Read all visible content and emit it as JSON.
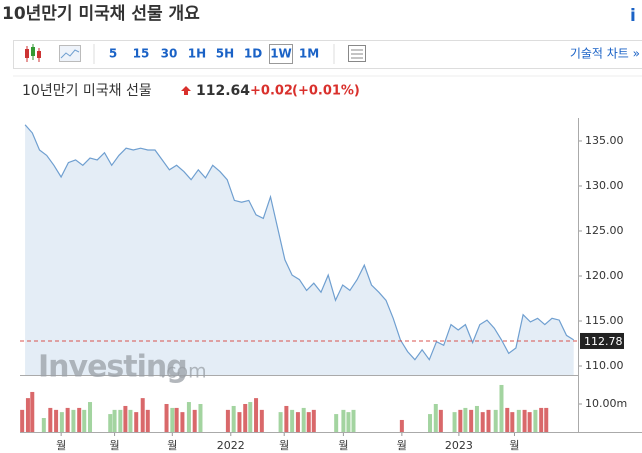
{
  "header": {
    "title": "10년만기 미국채 선물 개요",
    "info": "i"
  },
  "toolbar": {
    "intervals": [
      "5",
      "15",
      "30",
      "1H",
      "5H",
      "1D",
      "1W",
      "1M"
    ],
    "selected": 6,
    "link": "기술적 차트 »"
  },
  "quote": {
    "name": "10년만기 미국채 선물",
    "price": "112.64",
    "change": "+0.02",
    "change_pct": "(+0.01%)"
  },
  "watermark": [
    "Investing",
    ".com"
  ],
  "chart_data": {
    "type": "area",
    "color": "#6f9fd0",
    "fill": "#e4edf6",
    "values": [
      136.8,
      135.9,
      134.0,
      133.4,
      132.3,
      131.0,
      132.6,
      132.9,
      132.3,
      133.1,
      132.9,
      133.7,
      132.3,
      133.4,
      134.2,
      134.0,
      134.2,
      134.0,
      134.0,
      132.9,
      131.8,
      132.3,
      131.6,
      130.7,
      131.8,
      130.9,
      132.3,
      131.6,
      130.7,
      128.4,
      128.2,
      128.4,
      126.8,
      126.4,
      128.8,
      125.3,
      121.8,
      120.1,
      119.6,
      118.4,
      119.2,
      118.2,
      120.1,
      117.3,
      119.0,
      118.4,
      119.6,
      121.2,
      119.0,
      118.2,
      117.3,
      115.3,
      112.9,
      111.6,
      110.7,
      111.8,
      110.7,
      112.7,
      112.3,
      114.6,
      114.0,
      114.6,
      112.6,
      114.6,
      115.1,
      114.2,
      112.9,
      111.4,
      112.0,
      115.7,
      114.9,
      115.3,
      114.6,
      115.3,
      115.1,
      113.4,
      112.9
    ],
    "xlim": [
      -0.7,
      76.6
    ],
    "xticks": [
      {
        "value": 5.0,
        "label": "월"
      },
      {
        "value": 12.4,
        "label": "월"
      },
      {
        "value": 20.4,
        "label": "월"
      },
      {
        "value": 28.5,
        "label": "2022"
      },
      {
        "value": 35.9,
        "label": "월"
      },
      {
        "value": 44.1,
        "label": "월"
      },
      {
        "value": 52.2,
        "label": "월"
      },
      {
        "value": 60.1,
        "label": "2023"
      },
      {
        "value": 67.8,
        "label": "월"
      }
    ],
    "ylim": [
      109,
      137.33
    ],
    "yticks": [
      {
        "value": 135,
        "label": "135.00"
      },
      {
        "value": 130,
        "label": "130.00"
      },
      {
        "value": 125,
        "label": "125.00"
      },
      {
        "value": 120,
        "label": "120.00"
      },
      {
        "value": 115,
        "label": "115.00"
      },
      {
        "value": 110,
        "label": "110.00"
      }
    ],
    "last_price": 112.78,
    "last_color": "#d9534f",
    "volume": {
      "x": [
        -0.4,
        0.4,
        1.0,
        2.6,
        3.5,
        4.3,
        5.1,
        5.9,
        6.7,
        7.5,
        8.2,
        9.0,
        11.8,
        12.4,
        13.2,
        13.9,
        14.6,
        15.4,
        16.3,
        17.0,
        19.6,
        20.4,
        21.0,
        21.8,
        22.7,
        23.5,
        24.3,
        28.1,
        28.9,
        29.7,
        30.5,
        31.2,
        32.0,
        32.8,
        35.4,
        36.2,
        37.0,
        37.8,
        38.6,
        39.3,
        40.0,
        43.1,
        44.1,
        44.8,
        45.5,
        52.2,
        56.1,
        56.9,
        57.6,
        59.5,
        60.3,
        61.0,
        61.8,
        62.6,
        63.4,
        64.2,
        65.2,
        66.0,
        66.8,
        67.5,
        68.4,
        69.2,
        69.9,
        70.7,
        71.5,
        72.2
      ],
      "values": [
        7900000,
        12100000,
        14300000,
        5000000,
        8600000,
        7900000,
        7100000,
        8600000,
        7900000,
        8600000,
        7900000,
        10700000,
        6400000,
        7900000,
        7900000,
        9300000,
        7900000,
        7100000,
        12100000,
        7900000,
        10000000,
        8600000,
        8600000,
        7100000,
        10700000,
        7900000,
        10000000,
        7900000,
        9300000,
        7100000,
        10000000,
        10700000,
        12100000,
        7900000,
        7100000,
        9300000,
        7900000,
        7100000,
        8600000,
        7100000,
        7900000,
        6400000,
        7900000,
        7100000,
        7900000,
        4300000,
        6400000,
        10000000,
        7900000,
        7100000,
        7900000,
        8600000,
        7900000,
        9300000,
        7100000,
        7900000,
        7900000,
        16800000,
        8600000,
        7100000,
        7900000,
        7900000,
        7100000,
        7900000,
        8600000,
        8600000
      ],
      "colors": [
        "#d9686a",
        "#d9686a",
        "#d9686a",
        "#a3d4a0",
        "#d9686a",
        "#d9686a",
        "#a3d4a0",
        "#d9686a",
        "#a3d4a0",
        "#d9686a",
        "#a3d4a0",
        "#a3d4a0",
        "#a3d4a0",
        "#a3d4a0",
        "#a3d4a0",
        "#d9686a",
        "#a3d4a0",
        "#d9686a",
        "#d9686a",
        "#d9686a",
        "#d9686a",
        "#a3d4a0",
        "#d9686a",
        "#d9686a",
        "#a3d4a0",
        "#d9686a",
        "#a3d4a0",
        "#d9686a",
        "#a3d4a0",
        "#d9686a",
        "#d9686a",
        "#a3d4a0",
        "#d9686a",
        "#d9686a",
        "#a3d4a0",
        "#d9686a",
        "#a3d4a0",
        "#d9686a",
        "#a3d4a0",
        "#d9686a",
        "#d9686a",
        "#a3d4a0",
        "#a3d4a0",
        "#a3d4a0",
        "#a3d4a0",
        "#d9686a",
        "#a3d4a0",
        "#a3d4a0",
        "#d9686a",
        "#a3d4a0",
        "#d9686a",
        "#a3d4a0",
        "#d9686a",
        "#a3d4a0",
        "#d9686a",
        "#d9686a",
        "#a3d4a0",
        "#a3d4a0",
        "#d9686a",
        "#d9686a",
        "#a3d4a0",
        "#d9686a",
        "#d9686a",
        "#a3d4a0",
        "#d9686a",
        "#d9686a"
      ],
      "ylim": [
        0,
        18570000
      ],
      "yticks": [
        {
          "value": 10000000,
          "label": "10.00m"
        }
      ]
    }
  }
}
